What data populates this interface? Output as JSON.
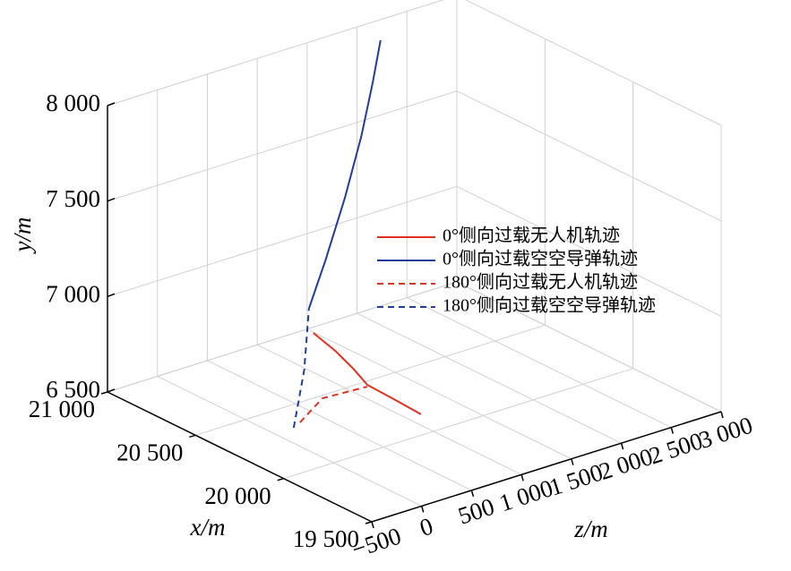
{
  "chart_data": {
    "type": "line3d",
    "xlabel": "x/m",
    "ylabel": "y/m",
    "zlabel": "z/m",
    "xlim": [
      19500,
      21000
    ],
    "xticks": [
      {
        "value": 19500,
        "label": "19 500"
      },
      {
        "value": 20000,
        "label": "20 000"
      },
      {
        "value": 20500,
        "label": "20 500"
      },
      {
        "value": 21000,
        "label": "21 000"
      }
    ],
    "ylim": [
      6500,
      8000
    ],
    "yticks": [
      {
        "value": 6500,
        "label": "6 500"
      },
      {
        "value": 7000,
        "label": "7 000"
      },
      {
        "value": 7500,
        "label": "7 500"
      },
      {
        "value": 8000,
        "label": "8 000"
      }
    ],
    "zlim": [
      -500,
      3000
    ],
    "zticks": [
      {
        "value": -500,
        "label": "−500"
      },
      0,
      500,
      {
        "value": 1000,
        "label": "1 000"
      },
      {
        "value": 1500,
        "label": "1 500"
      },
      {
        "value": 2000,
        "label": "2 000"
      },
      {
        "value": 2500,
        "label": "2 500"
      },
      {
        "value": 3000,
        "label": "3 000"
      }
    ],
    "grid": true,
    "series": [
      {
        "name": "0°侧向过载无人机轨迹",
        "color": "#e0301e",
        "dashed": false,
        "x": [
          20556,
          20420,
          20300,
          20205,
          20100,
          20013
        ],
        "y": [
          6800,
          6770,
          6735,
          6700,
          6650,
          6600
        ],
        "z": [
          779,
          760,
          730,
          699,
          800,
          898
        ]
      },
      {
        "name": "0°侧向过载空空导弹轨迹",
        "color": "#1f3c9c",
        "dashed": false,
        "x": [
          20602,
          20640,
          20700,
          20760,
          20810,
          20854
        ],
        "y": [
          6900,
          7100,
          7350,
          7600,
          7820,
          8000
        ],
        "z": [
          815,
          1050,
          1350,
          1620,
          1820,
          1978
        ]
      },
      {
        "name": "180°侧向过载无人机轨迹",
        "color": "#e0301e",
        "dashed": true,
        "x": [
          20359,
          20318,
          20260
        ],
        "y": [
          6500,
          6620,
          6650
        ],
        "z": [
          297,
          449,
          796
        ]
      },
      {
        "name": "180°侧向过载空空导弹轨迹",
        "color": "#1f3c9c",
        "dashed": true,
        "x": [
          20335,
          20450,
          20602
        ],
        "y": [
          6500,
          6700,
          6900
        ],
        "z": [
          192,
          500,
          815
        ]
      }
    ]
  }
}
